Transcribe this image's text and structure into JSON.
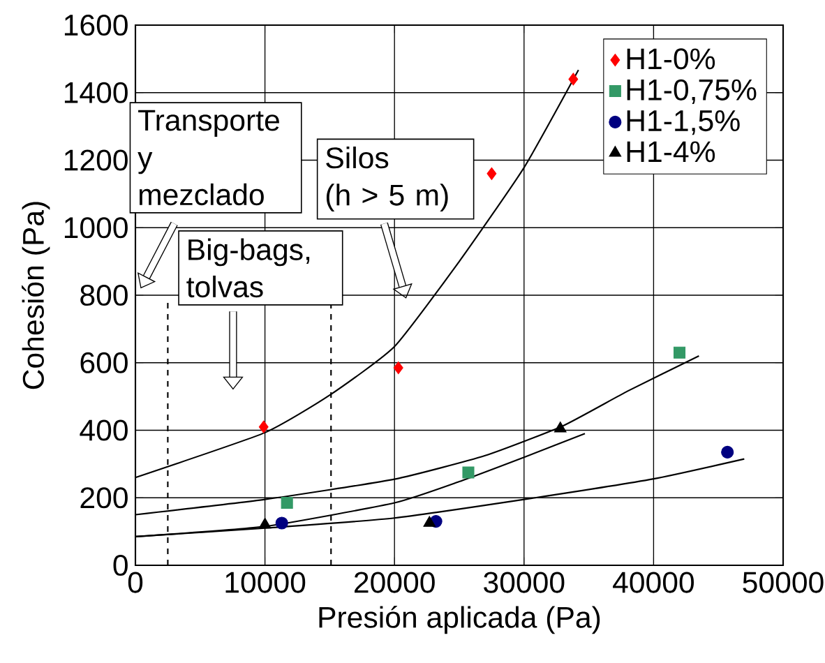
{
  "chart_data": {
    "type": "scatter",
    "xlabel": "Presión aplicada (Pa)",
    "ylabel": "Cohesión (Pa)",
    "xlim": [
      0,
      50000
    ],
    "ylim": [
      0,
      1600
    ],
    "xticks": [
      0,
      10000,
      20000,
      30000,
      40000,
      50000
    ],
    "yticks": [
      0,
      200,
      400,
      600,
      800,
      1000,
      1200,
      1400,
      1600
    ],
    "grid": true,
    "legend": "top right",
    "series": [
      {
        "name": "H1-0%",
        "color": "#ff0000",
        "marker": "diamond",
        "x": [
          9900,
          20300,
          27500,
          33800
        ],
        "values": [
          410,
          585,
          1160,
          1440
        ]
      },
      {
        "name": "H1-0,75%",
        "color": "#339966",
        "marker": "square",
        "x": [
          11700,
          25700,
          42000
        ],
        "values": [
          185,
          275,
          630
        ]
      },
      {
        "name": "H1-1,5%",
        "color": "#000080",
        "marker": "circle",
        "x": [
          11300,
          23200,
          45700
        ],
        "values": [
          125,
          130,
          335
        ]
      },
      {
        "name": "H1-4%",
        "color": "#000000",
        "marker": "triangle",
        "x": [
          10000,
          22700,
          32800
        ],
        "values": [
          120,
          125,
          405
        ]
      },
      {
        "type": "line",
        "color": "#000000",
        "marker": "none",
        "line_style": "solid",
        "x": [
          0,
          10000,
          15000,
          20000,
          25000,
          30000,
          34200
        ],
        "values": [
          260,
          393,
          504,
          648,
          900,
          1178,
          1467
        ]
      },
      {
        "type": "line",
        "color": "#000000",
        "marker": "none",
        "line_style": "solid",
        "x": [
          0,
          10000,
          20000,
          27000,
          33000,
          38000,
          43500
        ],
        "values": [
          150,
          195,
          255,
          325,
          413,
          516,
          620
        ]
      },
      {
        "type": "line",
        "color": "#000000",
        "marker": "none",
        "line_style": "solid",
        "x": [
          0,
          10000,
          20000,
          25000,
          30000,
          34700
        ],
        "values": [
          85,
          115,
          185,
          248,
          320,
          390
        ]
      },
      {
        "type": "line",
        "color": "#000000",
        "marker": "none",
        "line_style": "solid",
        "x": [
          0,
          10000,
          20000,
          30000,
          40000,
          47000
        ],
        "values": [
          85,
          110,
          140,
          195,
          256,
          315
        ]
      }
    ],
    "ref_lines": [
      {
        "axis": "x",
        "value": 2500,
        "line_style": "dashed",
        "color": "#000000"
      },
      {
        "axis": "x",
        "value": 15100,
        "line_style": "dashed",
        "color": "#000000"
      }
    ],
    "annotations": [
      "Transporte\ny\nmezclado",
      "Big-bags,\ntolvas",
      "Silos\n (h > 5 m)"
    ]
  }
}
